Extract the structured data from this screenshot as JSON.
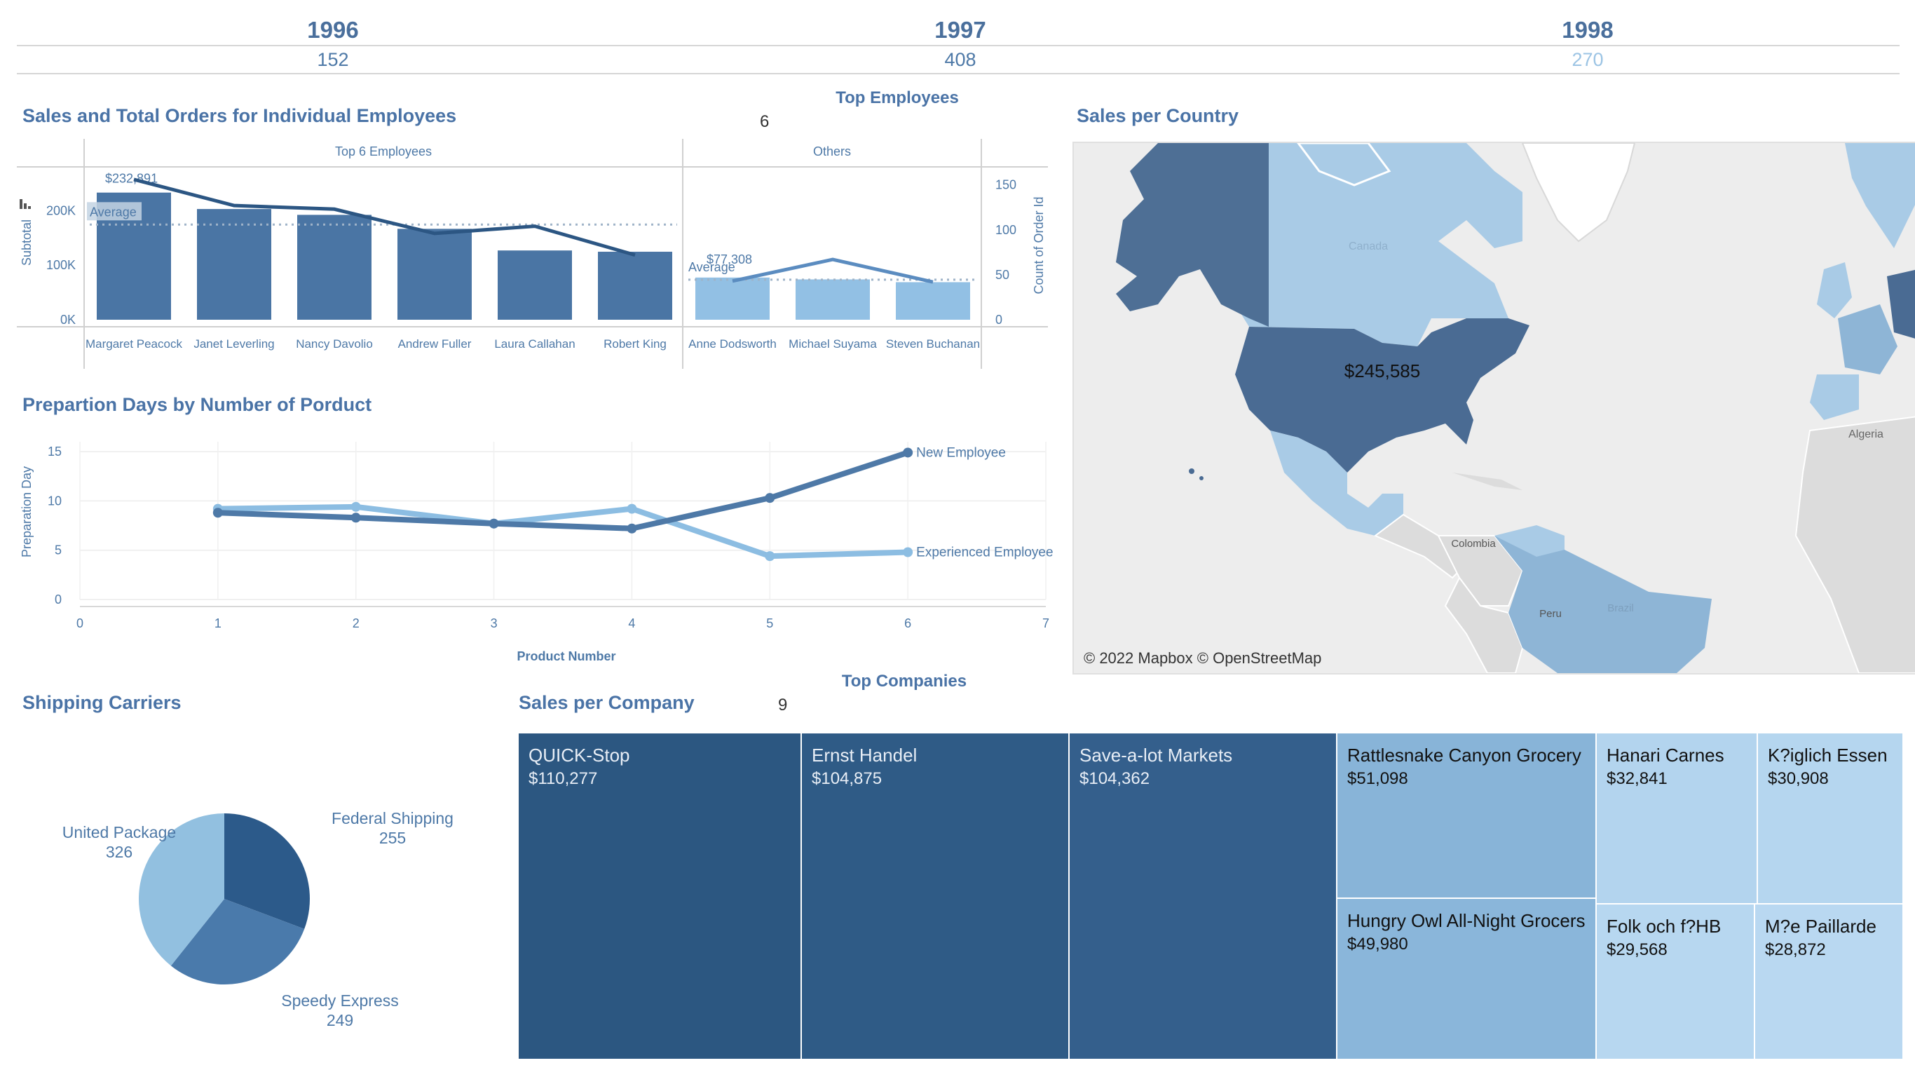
{
  "years": [
    {
      "year": "1996",
      "count": "152",
      "count_color": "#4e79a7"
    },
    {
      "year": "1997",
      "count": "408",
      "count_color": "#4e79a7"
    },
    {
      "year": "1998",
      "count": "270",
      "count_color": "#9cc4e4"
    }
  ],
  "top_employees": {
    "title": "Top Employees",
    "value": "6"
  },
  "employees_chart": {
    "title": "Sales and Total Orders for Individual Employees",
    "chart_data": {
      "type": "bar",
      "panels": [
        "Top 6 Employees",
        "Others"
      ],
      "categories": [
        "Margaret Peacock",
        "Janet Leverling",
        "Nancy Davolio",
        "Andrew Fuller",
        "Laura Callahan",
        "Robert King",
        "Anne Dodsworth",
        "Michael Suyama",
        "Steven Buchanan"
      ],
      "groups": [
        "top",
        "top",
        "top",
        "top",
        "top",
        "top",
        "other",
        "other",
        "other"
      ],
      "series": [
        {
          "name": "Subtotal",
          "axis": "left",
          "values": [
            232891,
            202813,
            192108,
            166538,
            126862,
            124568,
            77308,
            73913,
            68792
          ]
        },
        {
          "name": "Count of Order Id",
          "axis": "right",
          "values": [
            156,
            127,
            123,
            96,
            104,
            72,
            43,
            67,
            42
          ]
        }
      ],
      "averages": {
        "top": 174297,
        "other": 73338
      },
      "average_label": "Average",
      "bar_labels": [
        "$232,891",
        "$77,308"
      ],
      "ylabel": "Subtotal",
      "y2label": "Count of Order Id",
      "yticks": [
        "0K",
        "100K",
        "200K"
      ],
      "ylim": [
        0,
        280000
      ],
      "y2ticks": [
        "0",
        "50",
        "100",
        "150"
      ],
      "y2lim": [
        0,
        170
      ]
    }
  },
  "prep_chart": {
    "title": "Prepartion Days by Number of Porduct",
    "chart_data": {
      "type": "line",
      "x": [
        1,
        2,
        3,
        4,
        5,
        6
      ],
      "series": [
        {
          "name": "New Employee",
          "values": [
            8.8,
            8.3,
            7.7,
            7.2,
            10.3,
            14.9
          ],
          "color": "#4e79a7"
        },
        {
          "name": "Experienced Employee",
          "values": [
            9.2,
            9.4,
            7.7,
            9.2,
            4.4,
            4.8
          ],
          "color": "#8cbde2"
        }
      ],
      "xlabel": "Product Number",
      "ylabel": "Preparation Day",
      "xticks": [
        "0",
        "1",
        "2",
        "3",
        "4",
        "5",
        "6",
        "7"
      ],
      "xlim": [
        0,
        7
      ],
      "yticks": [
        "0",
        "5",
        "10",
        "15"
      ],
      "ylim": [
        0,
        16
      ]
    }
  },
  "map": {
    "title": "Sales per Country",
    "us_value": "$245,585",
    "credit": "© 2022 Mapbox © OpenStreetMap",
    "labels": [
      "Canada",
      "Algeria",
      "Colombia",
      "Peru",
      "Brazil"
    ]
  },
  "shipping": {
    "title": "Shipping Carriers",
    "chart_data": {
      "type": "pie",
      "labels": [
        "Federal Shipping",
        "Speedy Express",
        "United Package"
      ],
      "values": [
        255,
        249,
        326
      ],
      "colors": [
        "#2c5a8a",
        "#4a7aab",
        "#92c0e0"
      ]
    },
    "label_values": [
      "255",
      "249",
      "326"
    ]
  },
  "top_companies": {
    "title": "Top Companies",
    "value": "9"
  },
  "companies": {
    "title": "Sales per Company",
    "tiles": [
      {
        "name": "QUICK-Stop",
        "value": "$110,277"
      },
      {
        "name": "Ernst Handel",
        "value": "$104,875"
      },
      {
        "name": "Save-a-lot Markets",
        "value": "$104,362"
      },
      {
        "name": "Rattlesnake Canyon Grocery",
        "value": "$51,098"
      },
      {
        "name": "Hungry Owl All-Night Grocers",
        "value": "$49,980"
      },
      {
        "name": "Hanari Carnes",
        "value": "$32,841"
      },
      {
        "name": "K?iglich Essen",
        "value": "$30,908"
      },
      {
        "name": "Folk och f?HB",
        "value": "$29,568"
      },
      {
        "name": "M?e Paillarde",
        "value": "$28,872"
      }
    ]
  }
}
